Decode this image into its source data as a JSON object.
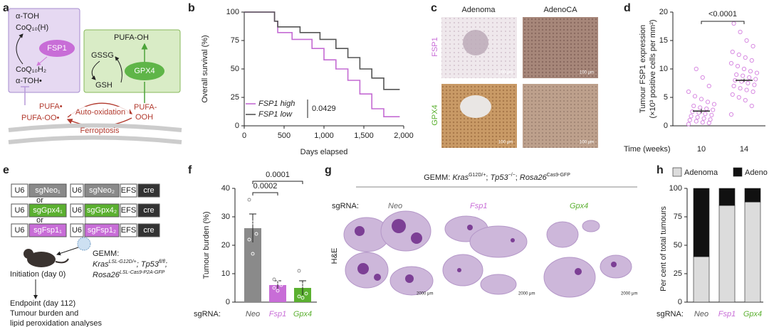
{
  "panel_labels": [
    "a",
    "b",
    "c",
    "d",
    "e",
    "f",
    "g",
    "h"
  ],
  "diagram_a": {
    "alpha_toh": "α-TOH",
    "coq_h": "CoQ₁₀(H)",
    "fsp1": "FSP1",
    "coqh2": "CoQ₁₀H₂",
    "alpha_toh_radical": "α-TOH•",
    "pufa_oh": "PUFA-OH",
    "gssg": "GSSG",
    "gsh": "GSH",
    "gpx4": "GPX4",
    "pufa_radical": "PUFA•",
    "pufa_oo": "PUFA-OO•",
    "auto_oxidation": "Auto-oxidation",
    "pufa_ooh": [
      "PUFA-",
      "OOH"
    ],
    "ferroptosis": "Ferroptosis"
  },
  "images_c": {
    "columns": [
      "Adenoma",
      "AdenoCA"
    ],
    "rows": [
      "FSP1",
      "GPX4"
    ],
    "scale_bar": "100 μm"
  },
  "diagram_e": {
    "constructs": [
      [
        "U6",
        "sgNeo₁",
        "U6",
        "sgNeo₂",
        "EFS",
        "cre"
      ],
      [
        "U6",
        "sgGpx4₁",
        "U6",
        "sgGpx4₂",
        "EFS",
        "cre"
      ],
      [
        "U6",
        "sgFsp1₁",
        "U6",
        "sgFsp1₂",
        "EFS",
        "cre"
      ]
    ],
    "or": "or",
    "gemm": "GEMM:",
    "genotype": [
      "Kras",
      "LSL-G12D/+",
      "; Tp53",
      "fl/fl",
      ";",
      "Rosa26",
      "LSL-Cas9-P2A-GFP"
    ],
    "initiation": "Initiation (day 0)",
    "endpoint": [
      "Endpoint (day 112)",
      "Tumour burden and",
      "lipid peroxidation analyses"
    ]
  },
  "images_g": {
    "title": [
      "GEMM: ",
      "Kras",
      "G12D/+",
      "; ",
      "Tp53",
      "−/−",
      "; ",
      "Rosa26",
      "Cas9-GFP"
    ],
    "row_label": "sgRNA:",
    "columns": [
      "Neo",
      "Fsp1",
      "Gpx4"
    ],
    "stain": "H&E",
    "scale_bar": "2000 μm"
  },
  "chart_data": [
    {
      "type": "line",
      "xlabel": "Days elapsed",
      "ylabel": "Overall survival (%)",
      "xlim": [
        0,
        2000
      ],
      "ylim": [
        0,
        100
      ],
      "xticks": [
        0,
        500,
        {
          "value": 1000,
          "label": "1,000"
        },
        {
          "value": 1500,
          "label": "1,500"
        },
        {
          "value": 2000,
          "label": "2,000"
        }
      ],
      "yticks": [
        0,
        25,
        50,
        75,
        100
      ],
      "annotation": "0.0429",
      "series": [
        {
          "name": "FSP1 high",
          "color": "#c46bd3",
          "x": [
            0,
            380,
            380,
            420,
            420,
            600,
            600,
            850,
            850,
            1000,
            1000,
            1150,
            1150,
            1300,
            1300,
            1450,
            1450,
            1600,
            1600,
            1750,
            1750,
            1950
          ],
          "values": [
            100,
            100,
            92,
            92,
            82,
            82,
            76,
            76,
            68,
            68,
            58,
            58,
            50,
            50,
            40,
            40,
            28,
            28,
            15,
            15,
            8,
            8
          ]
        },
        {
          "name": "FSP1 low",
          "color": "#555555",
          "x": [
            0,
            380,
            380,
            420,
            420,
            700,
            700,
            950,
            950,
            1150,
            1150,
            1300,
            1300,
            1450,
            1450,
            1600,
            1600,
            1750,
            1750,
            1950
          ],
          "values": [
            100,
            100,
            92,
            92,
            87,
            87,
            82,
            82,
            76,
            76,
            68,
            68,
            60,
            60,
            50,
            50,
            42,
            42,
            32,
            32
          ]
        }
      ]
    },
    {
      "type": "strip",
      "ylabel": [
        "Tumour FSP1 expression",
        "(×10³ positive cells per mm²)"
      ],
      "xlabel": "Time (weeks)",
      "categories": [
        "10",
        "14"
      ],
      "color": "#d88be2",
      "points": [
        [
          0.3,
          0.5,
          0.6,
          0.8,
          1,
          1.1,
          1.3,
          1.5,
          1.7,
          1.9,
          2.1,
          2.3,
          2.5,
          2.8,
          3,
          3.2,
          3.5,
          3.8,
          4.2,
          4.7,
          5.2,
          6,
          7,
          8.5,
          10
        ],
        [
          2,
          3.5,
          4.5,
          5,
          5.5,
          6,
          6.3,
          6.6,
          7,
          7.2,
          7.5,
          7.8,
          8,
          8.2,
          8.5,
          8.8,
          9,
          9.3,
          9.6,
          10,
          10.5,
          11,
          11.5,
          12,
          12.5,
          13,
          14,
          15,
          16.5,
          18
        ]
      ],
      "means": [
        2.6,
        8.0
      ],
      "errors": [
        0.4,
        0.3
      ],
      "ylim": [
        0,
        20
      ],
      "yticks": [
        0,
        5,
        10,
        15,
        20
      ],
      "annotation": "<0.0001"
    },
    {
      "type": "bar",
      "ylabel": "Tumour burden (%)",
      "category_label": "sgRNA:",
      "categories": [
        "Neo",
        "Fsp1",
        "Gpx4"
      ],
      "values": [
        26,
        6,
        5
      ],
      "errors": [
        5,
        1.5,
        2.5
      ],
      "colors": [
        "#8a8a8a",
        "#c86dd7",
        "#5bb030"
      ],
      "label_colors": [
        "#555555",
        "#c86dd7",
        "#5bb030"
      ],
      "points": [
        [
          36,
          28,
          24,
          22,
          17
        ],
        [
          8,
          7,
          6,
          5,
          4
        ],
        [
          11,
          6,
          3,
          2,
          1.5
        ]
      ],
      "ylim": [
        0,
        40
      ],
      "yticks": [
        0,
        10,
        20,
        30,
        40
      ],
      "annotations": [
        "0.0002",
        "0.0001"
      ]
    },
    {
      "type": "stacked_bar",
      "ylabel": "Per cent of total tumours",
      "category_label": "sgRNA:",
      "categories": [
        "Neo",
        "Fsp1",
        "Gpx4"
      ],
      "label_colors": [
        "#555555",
        "#c86dd7",
        "#5bb030"
      ],
      "series": [
        {
          "name": "Adenoma",
          "color": "#dcdcdc",
          "values": [
            40,
            85,
            88
          ]
        },
        {
          "name": "Adeno",
          "color": "#111111",
          "values": [
            60,
            15,
            12
          ]
        }
      ],
      "ylim": [
        0,
        100
      ],
      "yticks": [
        0,
        25,
        50,
        75,
        100
      ]
    }
  ]
}
